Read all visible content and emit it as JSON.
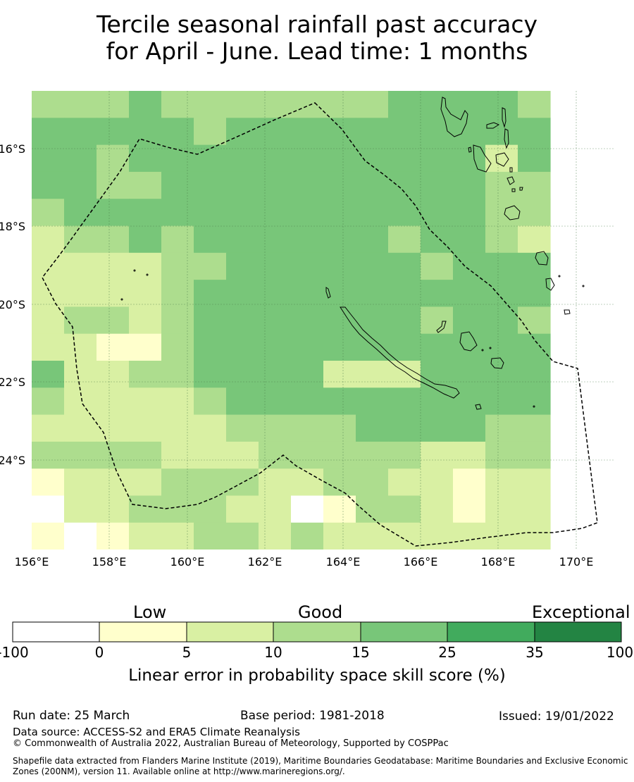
{
  "title": {
    "line1": "Tercile seasonal rainfall past accuracy",
    "line2": "for April - June. Lead time: 1 months"
  },
  "map": {
    "lon_ticks": [
      "156°E",
      "158°E",
      "160°E",
      "162°E",
      "164°E",
      "166°E",
      "168°E",
      "170°E"
    ],
    "lat_ticks": [
      "16°S",
      "18°S",
      "20°S",
      "22°S",
      "24°S"
    ],
    "grid_lines": true,
    "boundary_style": "dashed",
    "grid_categories": [
      "3334333333344443",
      "4444434444444444",
      "4434444444444424",
      "4433444444444433",
      "3444444444444433",
      "2334344444434432",
      "2222334444443444",
      "2222344444444444",
      "2332344444443443",
      "2211344444444444",
      "4223344442224444",
      "3222234444444444",
      "2222223333444433",
      "3333222333332233",
      "1222333223322122",
      "0223332201332122",
      "1012233232222222"
    ]
  },
  "colorbar": {
    "categories": [
      "Low",
      "Good",
      "Exceptional"
    ],
    "ticks": [
      "-100",
      "0",
      "5",
      "10",
      "15",
      "25",
      "35",
      "100"
    ],
    "colors": [
      "#ffffff",
      "#ffffcc",
      "#d9f0a3",
      "#addd8e",
      "#78c679",
      "#41ab5d",
      "#238443"
    ],
    "label": "Linear error in probability space skill score (%)"
  },
  "footer": {
    "run_date": "Run date: 25 March",
    "base_period": "Base period: 1981-2018",
    "issued": "Issued: 19/01/2022",
    "data_source": "Data source: ACCESS-S2 and ERA5 Climate Reanalysis",
    "copyright": "© Commonwealth of Australia 2022, Australian Bureau of Meteorology, Supported by COSPPac",
    "shapefile_line1": "Shapefile data extracted from Flanders Marine Institute (2019), Maritime Boundaries Geodatabase: Maritime Boundaries and Exclusive Economic",
    "shapefile_line2": "Zones (200NM), version 11. Available online at http://www.marineregions.org/."
  }
}
